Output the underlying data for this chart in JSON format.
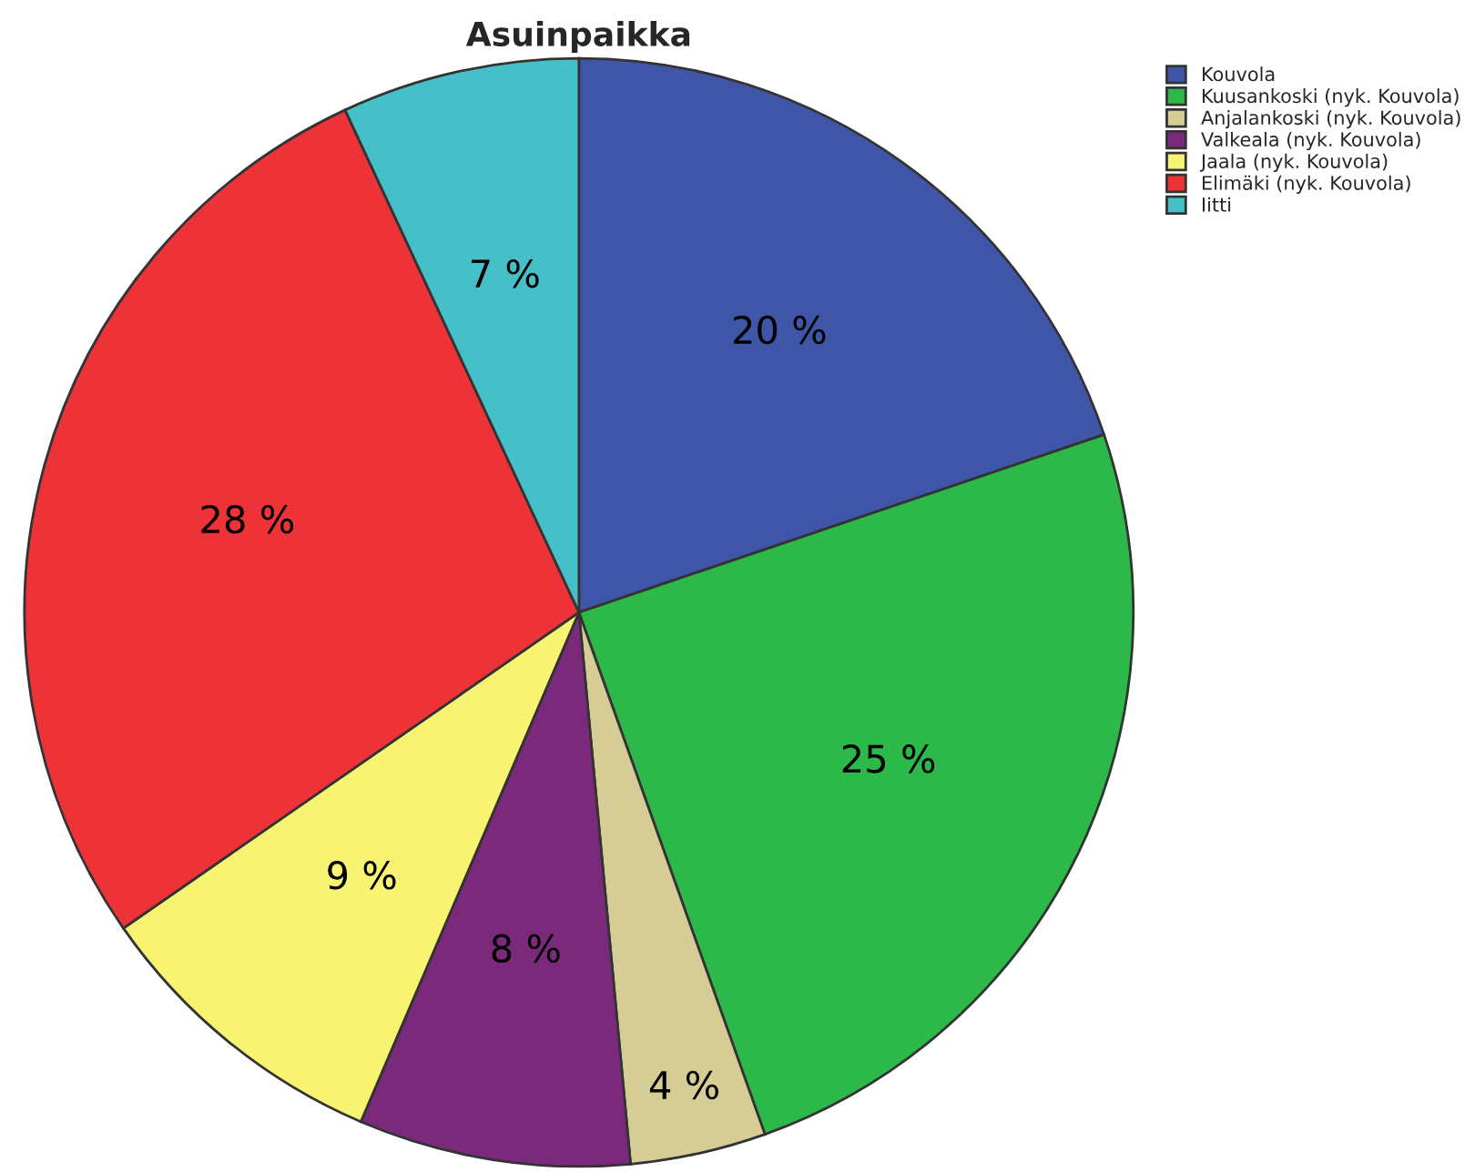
{
  "chart_data": {
    "type": "pie",
    "title": "Asuinpaikka",
    "categories": [
      "Kouvola",
      "Kuusankoski (nyk. Kouvola)",
      "Anjalankoski (nyk. Kouvola)",
      "Valkeala (nyk. Kouvola)",
      "Jaala (nyk. Kouvola)",
      "Elimäki (nyk. Kouvola)",
      "Iitti"
    ],
    "values": [
      20,
      25,
      4,
      8,
      9,
      28,
      7
    ],
    "colors": [
      "#3f56a8",
      "#2db84a",
      "#d6cd96",
      "#7b2a7b",
      "#f8f472",
      "#ee3338",
      "#46c0c8"
    ],
    "value_labels": [
      "20 %",
      "25 %",
      "4 %",
      "8 %",
      "9 %",
      "28 %",
      "7 %"
    ],
    "legend": "top right"
  }
}
